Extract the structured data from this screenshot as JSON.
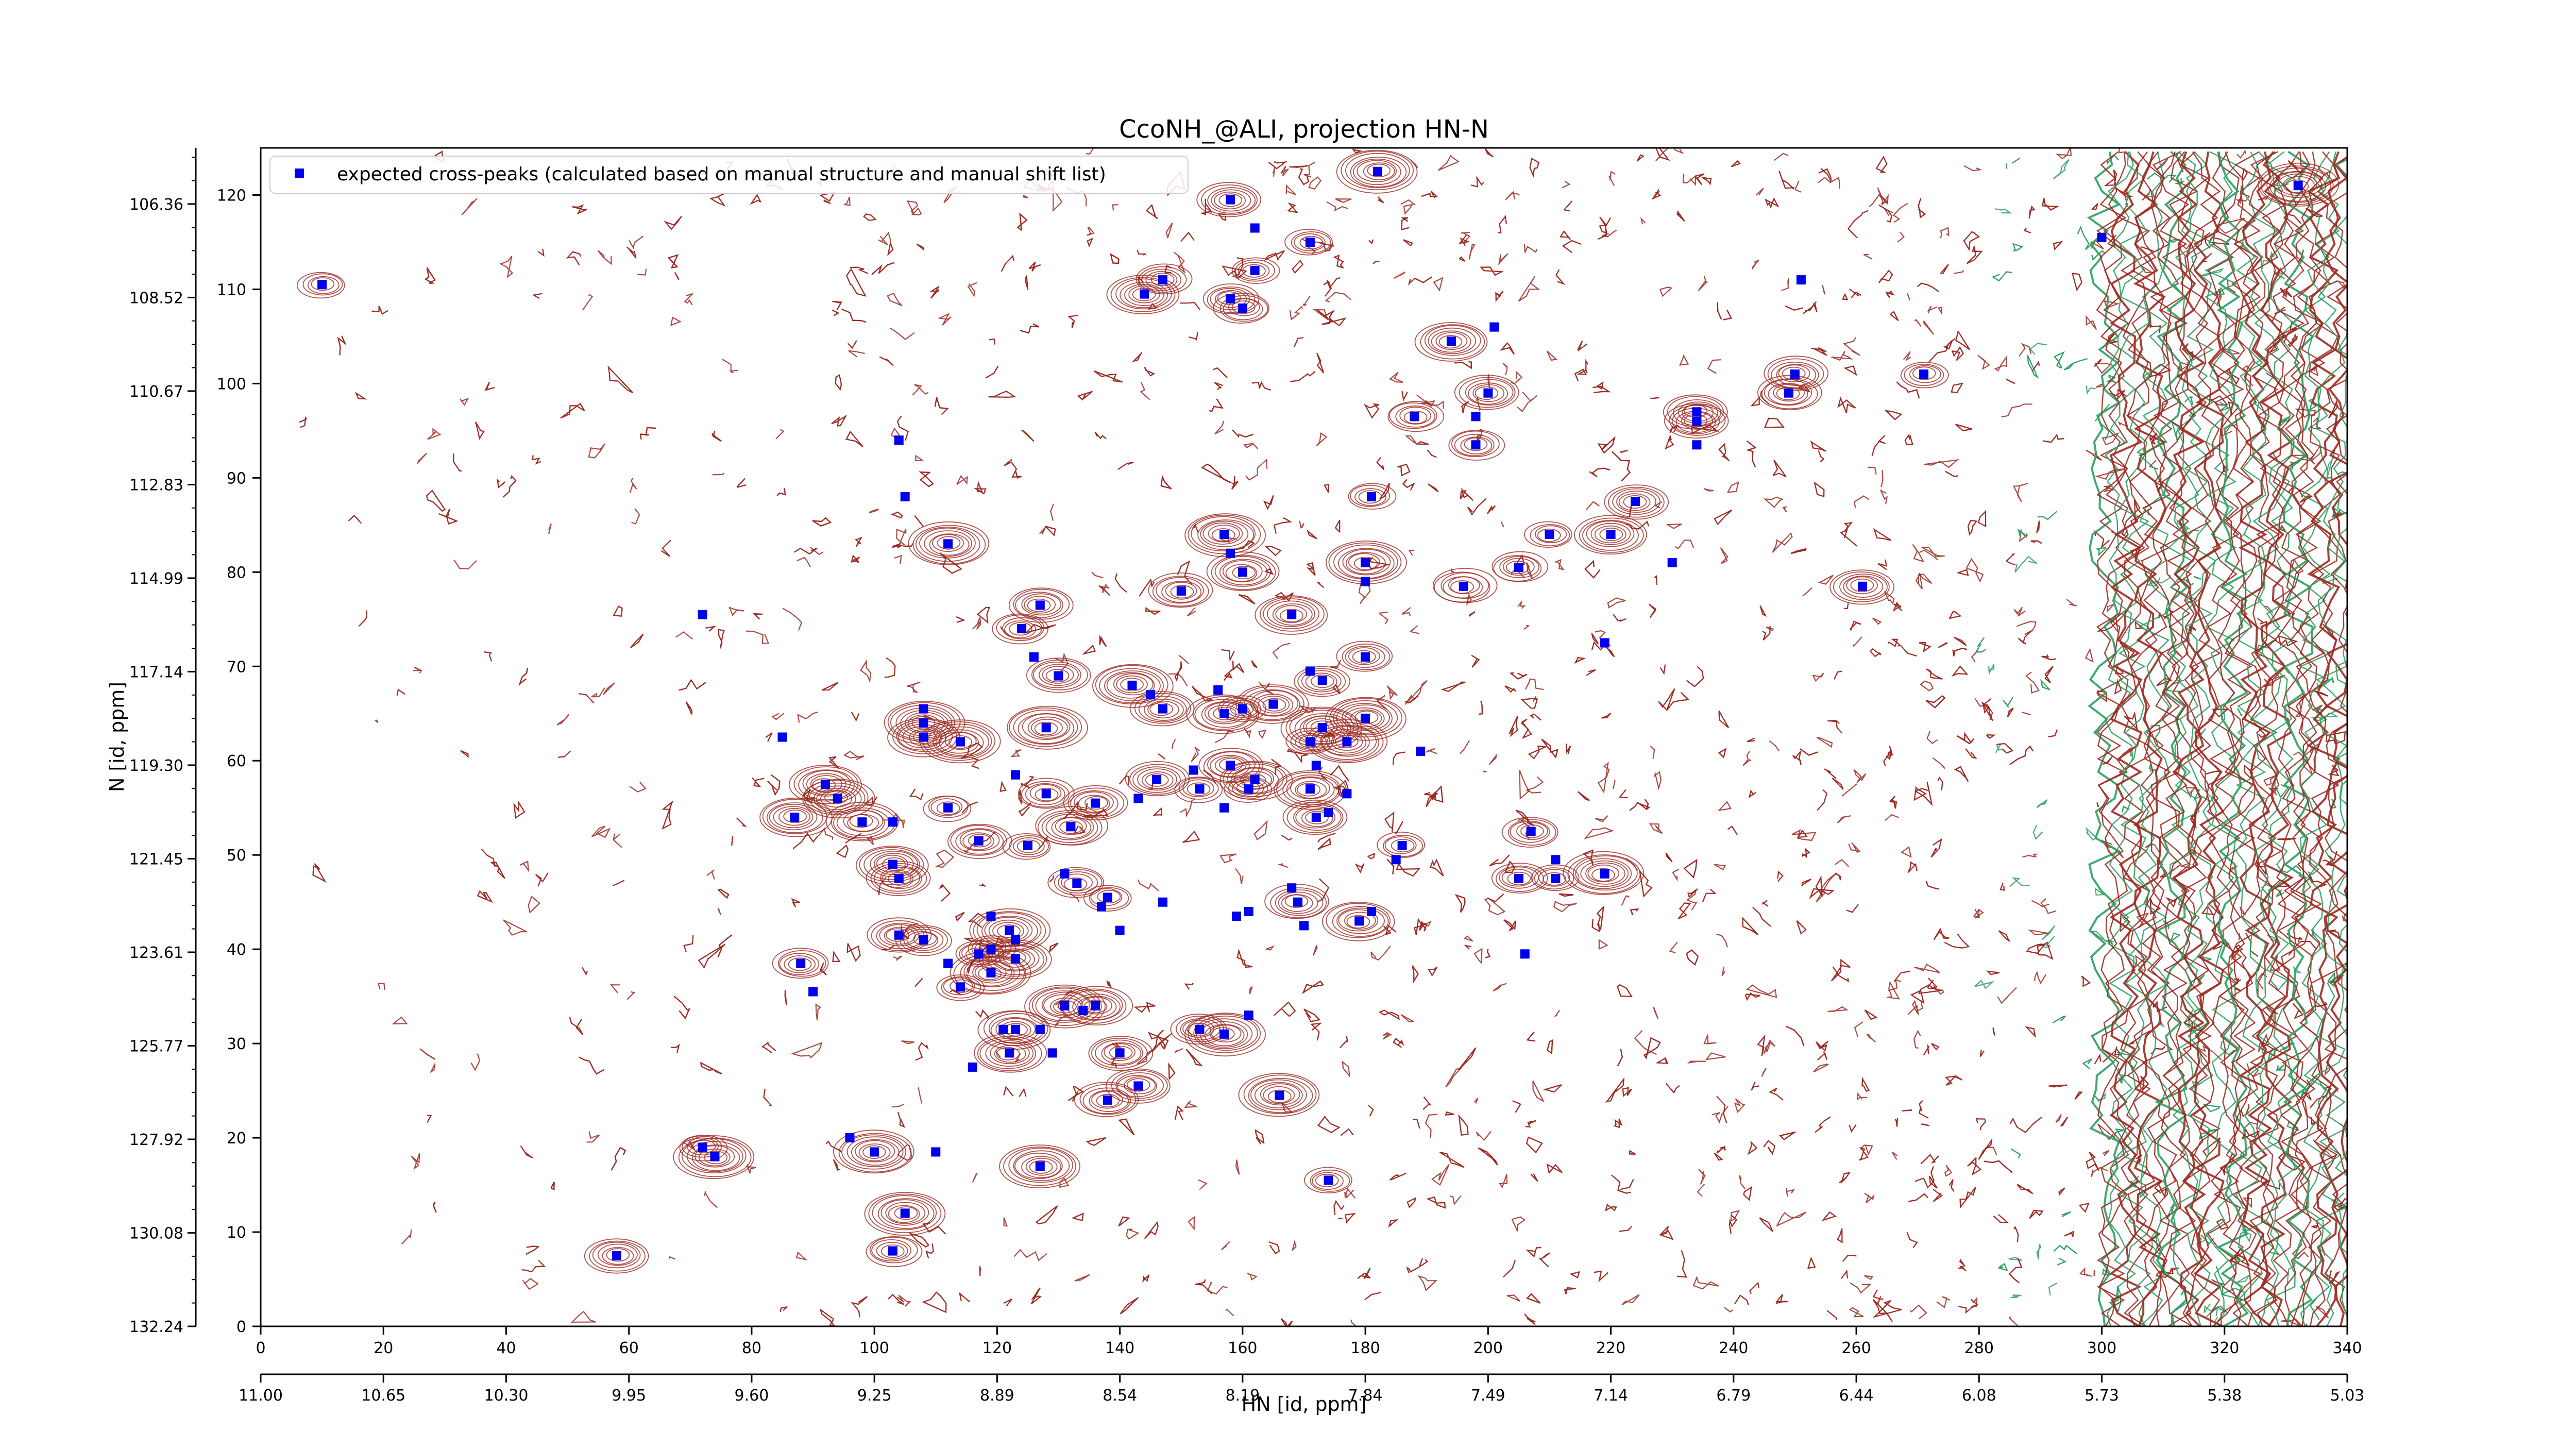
{
  "chart_data": {
    "type": "scatter",
    "title": "CcoNH_@ALI, projection HN-N",
    "xlabel": "HN [id, ppm]",
    "ylabel": "N [id, ppm]",
    "x_index_range": [
      0,
      340
    ],
    "y_index_range": [
      0,
      125
    ],
    "x_index_ticks": [
      0,
      20,
      40,
      60,
      80,
      100,
      120,
      140,
      160,
      180,
      200,
      220,
      240,
      260,
      280,
      300,
      320,
      340
    ],
    "y_index_ticks": [
      0,
      10,
      20,
      30,
      40,
      50,
      60,
      70,
      80,
      90,
      100,
      110,
      120
    ],
    "x_ppm_ticks": [
      "11.00",
      "10.65",
      "10.30",
      "9.95",
      "9.60",
      "9.25",
      "8.89",
      "8.54",
      "8.19",
      "7.84",
      "7.49",
      "7.14",
      "6.79",
      "6.44",
      "6.08",
      "5.73",
      "5.38",
      "5.03"
    ],
    "y_ppm_ticks": [
      "132.24",
      "130.08",
      "127.92",
      "125.77",
      "123.61",
      "121.45",
      "119.30",
      "117.14",
      "114.99",
      "112.83",
      "110.67",
      "108.52",
      "106.36"
    ],
    "legend": {
      "location": "top-left",
      "entries": [
        "expected cross-peaks (calculated based on manual structure and manual shift list)"
      ]
    },
    "colors": {
      "peak_marker": "#0000ee",
      "contour_positive": "#9b2a22",
      "contour_negative": "#2e9e62"
    },
    "series": [
      {
        "name": "expected cross-peaks (calculated based on manual structure and manual shift list)",
        "marker": "square",
        "points": [
          [
            10,
            110.5
          ],
          [
            58,
            7.5
          ],
          [
            72,
            75.5
          ],
          [
            72,
            19
          ],
          [
            74,
            18
          ],
          [
            85,
            62.5
          ],
          [
            87,
            54
          ],
          [
            88,
            38.5
          ],
          [
            90,
            35.5
          ],
          [
            92,
            57.5
          ],
          [
            94,
            56
          ],
          [
            96,
            20
          ],
          [
            98,
            53.5
          ],
          [
            100,
            18.5
          ],
          [
            103,
            53.5
          ],
          [
            103,
            8
          ],
          [
            103,
            49
          ],
          [
            104,
            94
          ],
          [
            104,
            41.5
          ],
          [
            104,
            47.5
          ],
          [
            105,
            88
          ],
          [
            105,
            12
          ],
          [
            108,
            62.5
          ],
          [
            108,
            65.5
          ],
          [
            108,
            64
          ],
          [
            108,
            41
          ],
          [
            110,
            18.5
          ],
          [
            112,
            83
          ],
          [
            112,
            55
          ],
          [
            112,
            38.5
          ],
          [
            114,
            62
          ],
          [
            114,
            36
          ],
          [
            116,
            27.5
          ],
          [
            117,
            51.5
          ],
          [
            117,
            39.5
          ],
          [
            119,
            43.5
          ],
          [
            119,
            40
          ],
          [
            119,
            37.5
          ],
          [
            121,
            31.5
          ],
          [
            122,
            29
          ],
          [
            122,
            42
          ],
          [
            123,
            41
          ],
          [
            123,
            31.5
          ],
          [
            123,
            39
          ],
          [
            123,
            58.5
          ],
          [
            124,
            74
          ],
          [
            125,
            51
          ],
          [
            126,
            71
          ],
          [
            127,
            76.5
          ],
          [
            127,
            17
          ],
          [
            127,
            31.5
          ],
          [
            128,
            63.5
          ],
          [
            128,
            56.5
          ],
          [
            129,
            29
          ],
          [
            130,
            69
          ],
          [
            131,
            34
          ],
          [
            131,
            48
          ],
          [
            132,
            53
          ],
          [
            133,
            47
          ],
          [
            134,
            33.5
          ],
          [
            136,
            34
          ],
          [
            136,
            55.5
          ],
          [
            137,
            44.5
          ],
          [
            138,
            45.5
          ],
          [
            138,
            24
          ],
          [
            140,
            42
          ],
          [
            140,
            29
          ],
          [
            142,
            68
          ],
          [
            143,
            56
          ],
          [
            143,
            25.5
          ],
          [
            144,
            109.5
          ],
          [
            145,
            67
          ],
          [
            146,
            58
          ],
          [
            147,
            65.5
          ],
          [
            147,
            45
          ],
          [
            147,
            111
          ],
          [
            150,
            78
          ],
          [
            152,
            59
          ],
          [
            153,
            57
          ],
          [
            153,
            31.5
          ],
          [
            156,
            67.5
          ],
          [
            157,
            65
          ],
          [
            157,
            31
          ],
          [
            157,
            55
          ],
          [
            158,
            59.5
          ],
          [
            157,
            84
          ],
          [
            158,
            82
          ],
          [
            158,
            109
          ],
          [
            158,
            119.5
          ],
          [
            159,
            43.5
          ],
          [
            160,
            65.5
          ],
          [
            160,
            80
          ],
          [
            161,
            44
          ],
          [
            160,
            108
          ],
          [
            161,
            57
          ],
          [
            161,
            33
          ],
          [
            162,
            58
          ],
          [
            162,
            112
          ],
          [
            162,
            116.5
          ],
          [
            165,
            66
          ],
          [
            166,
            24.5
          ],
          [
            168,
            46.5
          ],
          [
            168,
            75.5
          ],
          [
            169,
            45
          ],
          [
            170,
            42.5
          ],
          [
            171,
            57
          ],
          [
            171,
            62
          ],
          [
            171,
            69.5
          ],
          [
            171,
            115
          ],
          [
            172,
            54
          ],
          [
            172,
            59.5
          ],
          [
            173,
            68.5
          ],
          [
            173,
            63.5
          ],
          [
            174,
            54.5
          ],
          [
            174,
            15.5
          ],
          [
            177,
            62
          ],
          [
            177,
            56.5
          ],
          [
            179,
            43
          ],
          [
            180,
            71
          ],
          [
            180,
            79
          ],
          [
            180,
            81
          ],
          [
            180,
            64.5
          ],
          [
            181,
            44
          ],
          [
            181,
            88
          ],
          [
            182,
            122.5
          ],
          [
            185,
            49.5
          ],
          [
            186,
            51
          ],
          [
            188,
            96.5
          ],
          [
            189,
            61
          ],
          [
            194,
            104.5
          ],
          [
            196,
            78.5
          ],
          [
            198,
            96.5
          ],
          [
            198,
            93.5
          ],
          [
            200,
            99
          ],
          [
            201,
            106
          ],
          [
            205,
            47.5
          ],
          [
            205,
            80.5
          ],
          [
            206,
            39.5
          ],
          [
            207,
            52.5
          ],
          [
            210,
            84
          ],
          [
            211,
            49.5
          ],
          [
            211,
            47.5
          ],
          [
            219,
            48
          ],
          [
            219,
            72.5
          ],
          [
            220,
            84
          ],
          [
            224,
            87.5
          ],
          [
            230,
            81
          ],
          [
            234,
            96
          ],
          [
            234,
            97
          ],
          [
            234,
            93.5
          ],
          [
            249,
            99
          ],
          [
            250,
            101
          ],
          [
            251,
            111
          ],
          [
            261,
            78.5
          ],
          [
            271,
            101
          ],
          [
            300,
            115.5
          ],
          [
            332,
            121
          ]
        ]
      }
    ]
  }
}
